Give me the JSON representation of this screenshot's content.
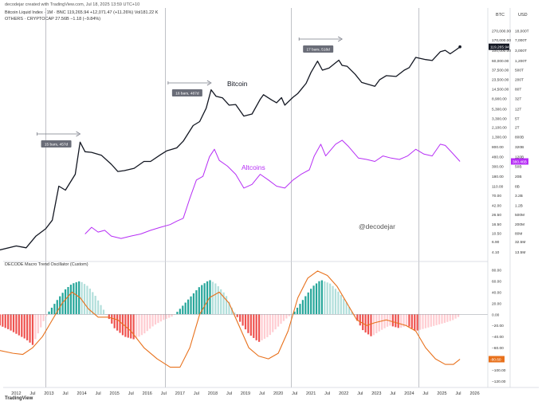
{
  "header": {
    "author_line": "decodejar created with TradingView.com, Jul 18, 2025 13:59 UTC+10",
    "btc_line": "Bitcoin Liquid Index · 1M · BNC  119,265.94  +12,071.47 (+11.26%)  Vol181.22 K",
    "others_line": "OTHERS · CRYPTOCAP  27.56B  −1.18 (−9.84%)"
  },
  "oscillator_title": "DECODE Macro Trend Oscillator (Custom)",
  "footer": "TradingView",
  "chart_data": [
    {
      "type": "line",
      "title": "",
      "x": [
        "2012",
        "Jul",
        "2013",
        "Jul",
        "2014",
        "Jul",
        "2015",
        "Jul",
        "2016",
        "Jul",
        "2017",
        "Jul",
        "2018",
        "Jul",
        "2019",
        "Jul",
        "2020",
        "Jul",
        "2021",
        "Jul",
        "2022",
        "Jul",
        "2023",
        "Jul",
        "2024",
        "Jul",
        "2025",
        "Jul",
        "2026"
      ],
      "y_axis_btc": {
        "label": "BTC",
        "scale": "log",
        "ticks": [
          "270,000.00",
          "170,000.00",
          "100,000.00",
          "60,000.00",
          "37,500.00",
          "23,500.00",
          "14,500.00",
          "8,900.00",
          "5,300.00",
          "3,300.00",
          "2,100.00",
          "1,300.00",
          "800.00",
          "480.00",
          "300.00",
          "180.00",
          "110.00",
          "70.00",
          "42.00",
          "26.50",
          "16.50",
          "10.50",
          "6.90",
          "4.10"
        ],
        "last_value": "119,265.94"
      },
      "y_axis_usd": {
        "label": "USD",
        "scale": "log",
        "ticks": [
          "18,000T",
          "7,000T",
          "3,000T",
          "1,200T",
          "500T",
          "200T",
          "80T",
          "32T",
          "12T",
          "5T",
          "2T",
          "800B",
          "320B",
          "120B",
          "50B",
          "20B",
          "8B",
          "3.2B",
          "1.2B",
          "500M",
          "200M",
          "80M",
          "32.5M",
          "13.5M"
        ],
        "last_value": "380.46B"
      },
      "series": [
        {
          "name": "Bitcoin",
          "color": "#131722",
          "points": [
            [
              2011.5,
              4.5
            ],
            [
              2012,
              5.5
            ],
            [
              2012.3,
              5
            ],
            [
              2012.6,
              9
            ],
            [
              2012.9,
              13
            ],
            [
              2013.1,
              20
            ],
            [
              2013.3,
              110
            ],
            [
              2013.5,
              90
            ],
            [
              2013.8,
              200
            ],
            [
              2013.95,
              1000
            ],
            [
              2014.1,
              620
            ],
            [
              2014.3,
              600
            ],
            [
              2014.6,
              520
            ],
            [
              2014.9,
              330
            ],
            [
              2015.1,
              230
            ],
            [
              2015.3,
              240
            ],
            [
              2015.6,
              270
            ],
            [
              2015.9,
              380
            ],
            [
              2016.1,
              380
            ],
            [
              2016.4,
              530
            ],
            [
              2016.6,
              650
            ],
            [
              2016.9,
              750
            ],
            [
              2017.1,
              1050
            ],
            [
              2017.4,
              2300
            ],
            [
              2017.6,
              2800
            ],
            [
              2017.8,
              5500
            ],
            [
              2017.95,
              13800
            ],
            [
              2018.1,
              10000
            ],
            [
              2018.3,
              9200
            ],
            [
              2018.5,
              6400
            ],
            [
              2018.7,
              6600
            ],
            [
              2018.95,
              3700
            ],
            [
              2019.2,
              4100
            ],
            [
              2019.45,
              8600
            ],
            [
              2019.55,
              10800
            ],
            [
              2019.8,
              8300
            ],
            [
              2019.95,
              7200
            ],
            [
              2020.1,
              9300
            ],
            [
              2020.2,
              6400
            ],
            [
              2020.45,
              9500
            ],
            [
              2020.6,
              11500
            ],
            [
              2020.85,
              19000
            ],
            [
              2021.0,
              33000
            ],
            [
              2021.2,
              58000
            ],
            [
              2021.35,
              37000
            ],
            [
              2021.55,
              41000
            ],
            [
              2021.85,
              61000
            ],
            [
              2021.95,
              47000
            ],
            [
              2022.1,
              45000
            ],
            [
              2022.35,
              30000
            ],
            [
              2022.55,
              20000
            ],
            [
              2022.95,
              16500
            ],
            [
              2023.1,
              23000
            ],
            [
              2023.3,
              28000
            ],
            [
              2023.6,
              27000
            ],
            [
              2023.85,
              37000
            ],
            [
              2024.0,
              42000
            ],
            [
              2024.2,
              70000
            ],
            [
              2024.5,
              63000
            ],
            [
              2024.7,
              60000
            ],
            [
              2024.95,
              93000
            ],
            [
              2025.1,
              100000
            ],
            [
              2025.25,
              84000
            ],
            [
              2025.45,
              105000
            ],
            [
              2025.55,
              119265.94
            ]
          ],
          "annotations": [
            {
              "label": "15 bars, 457d",
              "x": 2013.95
            },
            {
              "label": "16 bars, 487d",
              "x": 2017.95
            },
            {
              "label": "17 bars, 518d",
              "x": 2021.95
            }
          ]
        },
        {
          "name": "Altcoins",
          "color": "#b62ef5",
          "points": [
            [
              2014.1,
              10
            ],
            [
              2014.3,
              14
            ],
            [
              2014.5,
              11
            ],
            [
              2014.7,
              12
            ],
            [
              2014.9,
              9
            ],
            [
              2015.2,
              8
            ],
            [
              2015.5,
              9
            ],
            [
              2015.8,
              10
            ],
            [
              2016.1,
              12
            ],
            [
              2016.4,
              14
            ],
            [
              2016.7,
              16
            ],
            [
              2016.9,
              19
            ],
            [
              2017.1,
              22
            ],
            [
              2017.3,
              60
            ],
            [
              2017.5,
              150
            ],
            [
              2017.7,
              180
            ],
            [
              2017.9,
              480
            ],
            [
              2018.05,
              700
            ],
            [
              2018.2,
              400
            ],
            [
              2018.45,
              300
            ],
            [
              2018.7,
              200
            ],
            [
              2018.95,
              100
            ],
            [
              2019.2,
              120
            ],
            [
              2019.45,
              200
            ],
            [
              2019.7,
              150
            ],
            [
              2019.95,
              110
            ],
            [
              2020.2,
              100
            ],
            [
              2020.45,
              150
            ],
            [
              2020.7,
              200
            ],
            [
              2020.95,
              250
            ],
            [
              2021.1,
              500
            ],
            [
              2021.3,
              900
            ],
            [
              2021.45,
              500
            ],
            [
              2021.75,
              900
            ],
            [
              2021.95,
              1100
            ],
            [
              2022.15,
              800
            ],
            [
              2022.45,
              450
            ],
            [
              2022.7,
              420
            ],
            [
              2022.95,
              380
            ],
            [
              2023.2,
              500
            ],
            [
              2023.45,
              450
            ],
            [
              2023.7,
              420
            ],
            [
              2023.95,
              500
            ],
            [
              2024.2,
              700
            ],
            [
              2024.45,
              550
            ],
            [
              2024.7,
              500
            ],
            [
              2024.95,
              900
            ],
            [
              2025.1,
              850
            ],
            [
              2025.3,
              600
            ],
            [
              2025.55,
              380
            ]
          ]
        }
      ]
    },
    {
      "type": "bar",
      "title": "DECODE Macro Trend Oscillator (Custom)",
      "y_axis": {
        "ticks": [
          "80.00",
          "60.00",
          "40.00",
          "20.00",
          "0.00",
          "−20.00",
          "−40.00",
          "−60.00",
          "−80.00",
          "−100.00",
          "−120.00"
        ],
        "ylim": [
          -120,
          85
        ],
        "last_value": "-80.60"
      },
      "series": [
        {
          "name": "",
          "color_positive": "#26a69a",
          "color_negative": "#ef5350",
          "values_by_year": [
            [
              2011.5,
              -20
            ],
            [
              2011.8,
              -28
            ],
            [
              2012.0,
              -35
            ],
            [
              2012.3,
              -45
            ],
            [
              2012.5,
              -55
            ],
            [
              2012.7,
              -30
            ],
            [
              2012.85,
              -10
            ],
            [
              2013.0,
              5
            ],
            [
              2013.3,
              30
            ],
            [
              2013.5,
              45
            ],
            [
              2013.7,
              55
            ],
            [
              2013.95,
              60
            ],
            [
              2014.2,
              50
            ],
            [
              2014.4,
              35
            ],
            [
              2014.6,
              15
            ],
            [
              2014.8,
              -5
            ],
            [
              2015.0,
              -25
            ],
            [
              2015.3,
              -40
            ],
            [
              2015.6,
              -45
            ],
            [
              2015.9,
              -35
            ],
            [
              2016.2,
              -20
            ],
            [
              2016.5,
              -10
            ],
            [
              2016.8,
              -3
            ],
            [
              2017.0,
              10
            ],
            [
              2017.3,
              30
            ],
            [
              2017.6,
              50
            ],
            [
              2017.9,
              62
            ],
            [
              2018.1,
              55
            ],
            [
              2018.4,
              35
            ],
            [
              2018.6,
              10
            ],
            [
              2018.85,
              -15
            ],
            [
              2019.1,
              -35
            ],
            [
              2019.4,
              -50
            ],
            [
              2019.7,
              -40
            ],
            [
              2019.95,
              -25
            ],
            [
              2020.2,
              -10
            ],
            [
              2020.5,
              5
            ],
            [
              2020.8,
              30
            ],
            [
              2021.05,
              50
            ],
            [
              2021.3,
              62
            ],
            [
              2021.6,
              55
            ],
            [
              2021.85,
              40
            ],
            [
              2022.1,
              20
            ],
            [
              2022.35,
              -5
            ],
            [
              2022.6,
              -30
            ],
            [
              2022.85,
              -40
            ],
            [
              2023.1,
              -30
            ],
            [
              2023.4,
              -20
            ],
            [
              2023.7,
              -25
            ],
            [
              2023.95,
              -20
            ],
            [
              2024.2,
              -30
            ],
            [
              2024.5,
              -25
            ],
            [
              2024.8,
              -20
            ],
            [
              2025.1,
              -15
            ],
            [
              2025.35,
              -10
            ],
            [
              2025.55,
              -3
            ]
          ]
        },
        {
          "name": "",
          "color": "#e8711c",
          "values_by_year": [
            [
              2011.5,
              -65
            ],
            [
              2011.9,
              -70
            ],
            [
              2012.2,
              -72
            ],
            [
              2012.5,
              -60
            ],
            [
              2012.8,
              -40
            ],
            [
              2013.1,
              -10
            ],
            [
              2013.4,
              20
            ],
            [
              2013.7,
              40
            ],
            [
              2013.95,
              30
            ],
            [
              2014.2,
              10
            ],
            [
              2014.5,
              -5
            ],
            [
              2014.8,
              -5
            ],
            [
              2015.1,
              -10
            ],
            [
              2015.5,
              -30
            ],
            [
              2015.9,
              -60
            ],
            [
              2016.3,
              -80
            ],
            [
              2016.7,
              -95
            ],
            [
              2017.0,
              -95
            ],
            [
              2017.3,
              -60
            ],
            [
              2017.6,
              0
            ],
            [
              2017.9,
              30
            ],
            [
              2018.2,
              40
            ],
            [
              2018.5,
              20
            ],
            [
              2018.8,
              -20
            ],
            [
              2019.1,
              -60
            ],
            [
              2019.4,
              -75
            ],
            [
              2019.7,
              -80
            ],
            [
              2020.0,
              -70
            ],
            [
              2020.3,
              -30
            ],
            [
              2020.6,
              30
            ],
            [
              2020.9,
              65
            ],
            [
              2021.2,
              78
            ],
            [
              2021.5,
              70
            ],
            [
              2021.8,
              50
            ],
            [
              2022.1,
              20
            ],
            [
              2022.4,
              -10
            ],
            [
              2022.7,
              -20
            ],
            [
              2022.95,
              -15
            ],
            [
              2023.3,
              -10
            ],
            [
              2023.6,
              -15
            ],
            [
              2023.9,
              -20
            ],
            [
              2024.2,
              -30
            ],
            [
              2024.5,
              -60
            ],
            [
              2024.8,
              -80
            ],
            [
              2025.1,
              -90
            ],
            [
              2025.35,
              -90
            ],
            [
              2025.55,
              -80.6
            ]
          ]
        }
      ]
    }
  ],
  "watermark": "@decodejar"
}
